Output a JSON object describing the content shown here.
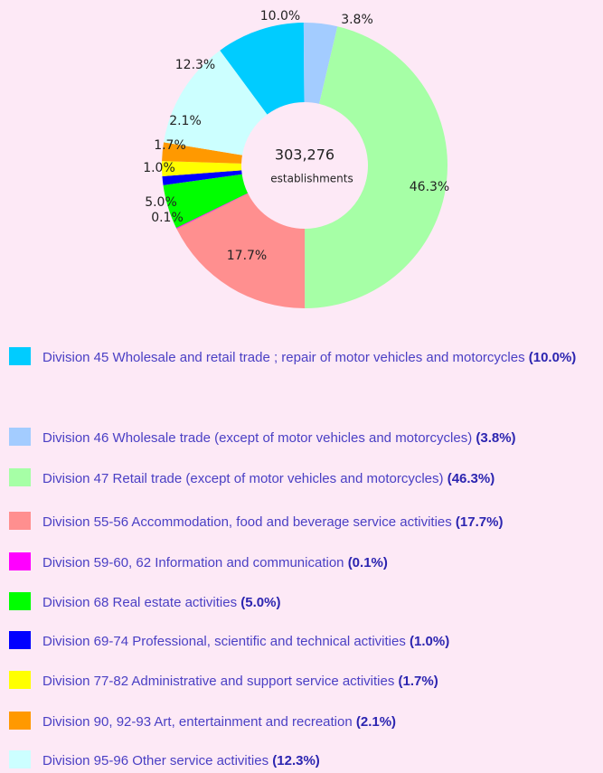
{
  "chart_data": {
    "type": "donut",
    "center_value": "303,276",
    "center_label": "establishments",
    "categories": [
      "Division 45 Wholesale and retail trade ; repair of motor vehicles and motorcycles",
      "Division 46 Wholesale trade (except of motor vehicles and motorcycles)",
      "Division 47 Retail trade (except of motor vehicles and motorcycles)",
      "Division 55-56 Accommodation, food and beverage service activities",
      "Division 59-60, 62 Information and communication",
      "Division 68 Real estate activities",
      "Division 69-74 Professional, scientific and technical activities",
      "Division 77-82 Administrative and support service activities",
      "Division 90, 92-93 Art, entertainment and recreation",
      "Division 95-96 Other service activities"
    ],
    "values": [
      10.0,
      3.8,
      46.3,
      17.7,
      0.1,
      5.0,
      1.0,
      1.7,
      2.1,
      12.3
    ],
    "value_labels": [
      "10.0%",
      "3.8%",
      "46.3%",
      "17.7%",
      "0.1%",
      "5.0%",
      "1.0%",
      "1.7%",
      "2.1%",
      "12.3%"
    ],
    "legend_value_labels": [
      "(10.0%)",
      "(3.8%)",
      "(46.3%)",
      "(17.7%)",
      "(0.1%)",
      "(5.0%)",
      "(1.0%)",
      "(1.7%)",
      "(2.1%)",
      "(12.3%)"
    ],
    "colors": [
      "#00ccff",
      "#a3ccff",
      "#a6ffa6",
      "#ff8f8f",
      "#ff00ff",
      "#00ff00",
      "#0000ff",
      "#ffff00",
      "#ff9900",
      "#ccffff"
    ]
  }
}
